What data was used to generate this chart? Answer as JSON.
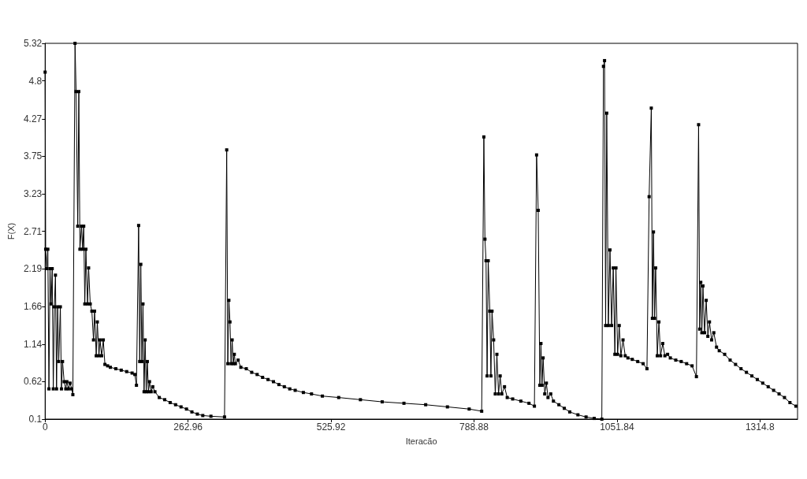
{
  "chart_data": {
    "type": "line",
    "xlabel": "Iteracão",
    "ylabel": "F(X)",
    "xlim": [
      0,
      1384
    ],
    "ylim": [
      0.1,
      5.32
    ],
    "xticks": [
      0,
      262.96,
      525.92,
      788.88,
      1051.84,
      1314.8
    ],
    "yticks": [
      0.1,
      0.62,
      1.14,
      1.66,
      2.19,
      2.71,
      3.23,
      3.75,
      4.27,
      4.8,
      5.32
    ],
    "grid": false,
    "marker": "square",
    "line_style": "solid",
    "series": [
      {
        "color": "#000000",
        "x": [
          0,
          1,
          3,
          5,
          7,
          9,
          11,
          13,
          15,
          17,
          19,
          21,
          23,
          25,
          28,
          30,
          32,
          35,
          38,
          40,
          43,
          46,
          49,
          51,
          55,
          57,
          60,
          62,
          64,
          67,
          69,
          71,
          73,
          75,
          78,
          80,
          83,
          86,
          89,
          91,
          94,
          96,
          99,
          101,
          104,
          107,
          110,
          115,
          120,
          130,
          140,
          150,
          160,
          165,
          168,
          172,
          174,
          176,
          178,
          180,
          182,
          184,
          186,
          188,
          190,
          192,
          195,
          198,
          202,
          210,
          220,
          230,
          240,
          250,
          260,
          270,
          280,
          290,
          305,
          330,
          334,
          336,
          338,
          340,
          342,
          344,
          346,
          348,
          350,
          355,
          360,
          370,
          380,
          390,
          400,
          410,
          420,
          430,
          440,
          450,
          460,
          475,
          490,
          510,
          540,
          580,
          620,
          660,
          700,
          740,
          780,
          803,
          807,
          809,
          811,
          813,
          815,
          818,
          820,
          822,
          825,
          828,
          831,
          834,
          837,
          840,
          845,
          850,
          860,
          875,
          890,
          900,
          904,
          907,
          910,
          912,
          914,
          916,
          919,
          922,
          925,
          930,
          935,
          945,
          955,
          965,
          980,
          995,
          1010,
          1024,
          1027,
          1029,
          1031,
          1033,
          1036,
          1039,
          1042,
          1045,
          1048,
          1050,
          1053,
          1056,
          1059,
          1063,
          1067,
          1072,
          1080,
          1090,
          1100,
          1107,
          1111,
          1115,
          1117,
          1119,
          1121,
          1123,
          1126,
          1129,
          1132,
          1136,
          1140,
          1145,
          1150,
          1160,
          1170,
          1180,
          1190,
          1198,
          1202,
          1204,
          1206,
          1208,
          1210,
          1213,
          1216,
          1219,
          1222,
          1226,
          1230,
          1235,
          1240,
          1250,
          1260,
          1270,
          1280,
          1290,
          1300,
          1310,
          1320,
          1330,
          1340,
          1350,
          1360,
          1370,
          1381
        ],
        "values": [
          4.92,
          2.46,
          2.19,
          2.46,
          0.52,
          2.19,
          1.7,
          2.19,
          0.52,
          1.66,
          2.1,
          0.52,
          1.66,
          0.9,
          1.66,
          0.52,
          0.9,
          0.62,
          0.52,
          0.62,
          0.52,
          0.6,
          0.52,
          0.44,
          5.32,
          4.65,
          2.78,
          4.65,
          2.46,
          2.78,
          2.46,
          2.78,
          1.7,
          2.46,
          1.7,
          2.2,
          1.7,
          1.6,
          1.2,
          1.6,
          0.98,
          1.45,
          0.98,
          1.2,
          0.98,
          1.2,
          0.86,
          0.84,
          0.82,
          0.8,
          0.78,
          0.76,
          0.74,
          0.72,
          0.57,
          2.79,
          0.9,
          2.25,
          0.9,
          1.7,
          0.48,
          1.2,
          0.48,
          0.9,
          0.48,
          0.62,
          0.48,
          0.55,
          0.48,
          0.4,
          0.37,
          0.33,
          0.3,
          0.27,
          0.24,
          0.2,
          0.17,
          0.15,
          0.14,
          0.13,
          3.84,
          0.87,
          1.75,
          1.45,
          0.87,
          1.2,
          0.87,
          1.0,
          0.87,
          0.92,
          0.82,
          0.8,
          0.75,
          0.72,
          0.68,
          0.65,
          0.62,
          0.58,
          0.55,
          0.52,
          0.5,
          0.47,
          0.45,
          0.42,
          0.4,
          0.37,
          0.34,
          0.32,
          0.3,
          0.27,
          0.24,
          0.21,
          4.02,
          2.6,
          2.3,
          0.7,
          2.3,
          1.6,
          0.7,
          1.6,
          1.2,
          0.45,
          1.0,
          0.45,
          0.7,
          0.45,
          0.55,
          0.4,
          0.38,
          0.35,
          0.32,
          0.28,
          3.77,
          3.0,
          0.57,
          1.15,
          0.57,
          0.95,
          0.45,
          0.6,
          0.4,
          0.45,
          0.35,
          0.3,
          0.25,
          0.2,
          0.16,
          0.13,
          0.11,
          0.1,
          5.0,
          5.08,
          1.4,
          4.35,
          1.4,
          2.45,
          1.4,
          2.2,
          1.0,
          2.2,
          1.0,
          1.4,
          0.98,
          1.2,
          0.98,
          0.95,
          0.93,
          0.9,
          0.87,
          0.8,
          3.19,
          4.42,
          1.5,
          2.7,
          1.5,
          2.2,
          0.98,
          1.45,
          0.98,
          1.15,
          0.98,
          1.0,
          0.95,
          0.92,
          0.9,
          0.87,
          0.84,
          0.69,
          4.19,
          1.35,
          2.0,
          1.3,
          1.95,
          1.3,
          1.75,
          1.25,
          1.45,
          1.2,
          1.3,
          1.1,
          1.05,
          1.0,
          0.92,
          0.86,
          0.8,
          0.75,
          0.7,
          0.65,
          0.6,
          0.55,
          0.5,
          0.45,
          0.4,
          0.33,
          0.28
        ]
      }
    ]
  }
}
